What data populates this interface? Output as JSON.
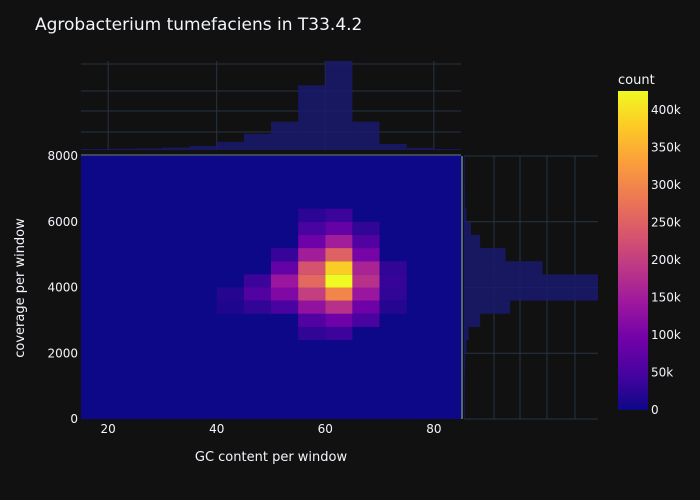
{
  "chart_data": {
    "type": "heatmap",
    "title": "Agrobacterium tumefaciens in T33.4.2",
    "xlabel": "GC content per window",
    "ylabel": "coverage per window",
    "xlim": [
      15,
      85
    ],
    "ylim": [
      0,
      8000
    ],
    "x_ticks": [
      20,
      40,
      60,
      80
    ],
    "y_ticks": [
      0,
      2000,
      4000,
      6000,
      8000
    ],
    "x_tick_labels": [
      "20",
      "40",
      "60",
      "80"
    ],
    "y_tick_labels": [
      "0",
      "2000",
      "4000",
      "6000",
      "8000"
    ],
    "bin_size_x": 5,
    "bin_size_y": 400,
    "colorscale": [
      "#0d0887",
      "#46039f",
      "#7201a8",
      "#9c179e",
      "#bd3786",
      "#d8576b",
      "#ed7953",
      "#fb9f3a",
      "#fdca26",
      "#f0f921"
    ],
    "colorbar": {
      "title": "count",
      "max": 425000,
      "ticks": [
        0,
        50000,
        100000,
        150000,
        200000,
        250000,
        300000,
        350000,
        400000
      ],
      "tick_labels": [
        "0",
        "50k",
        "100k",
        "150k",
        "200k",
        "250k",
        "300k",
        "350k",
        "400k"
      ]
    },
    "grid": true,
    "marginal_x": {
      "type": "histogram",
      "bins": [
        [
          15,
          20,
          0.5
        ],
        [
          20,
          25,
          0.6
        ],
        [
          25,
          30,
          0.8
        ],
        [
          30,
          35,
          1.2
        ],
        [
          35,
          40,
          2
        ],
        [
          40,
          45,
          4
        ],
        [
          45,
          50,
          8
        ],
        [
          50,
          55,
          14
        ],
        [
          55,
          60,
          32
        ],
        [
          60,
          65,
          44
        ],
        [
          65,
          70,
          14
        ],
        [
          70,
          75,
          3
        ],
        [
          75,
          80,
          1
        ],
        [
          80,
          85,
          0.5
        ]
      ]
    },
    "marginal_y": {
      "type": "histogram",
      "bins": [
        [
          0,
          400,
          0.3
        ],
        [
          400,
          800,
          0.3
        ],
        [
          800,
          1200,
          0.3
        ],
        [
          1200,
          1600,
          0.4
        ],
        [
          1600,
          2000,
          0.5
        ],
        [
          2000,
          2400,
          1
        ],
        [
          2400,
          2800,
          2
        ],
        [
          2800,
          3200,
          7
        ],
        [
          3200,
          3600,
          20
        ],
        [
          3600,
          4000,
          58
        ],
        [
          4000,
          4400,
          58
        ],
        [
          4400,
          4800,
          34
        ],
        [
          4800,
          5200,
          18
        ],
        [
          5200,
          5600,
          7
        ],
        [
          5600,
          6000,
          3
        ],
        [
          6000,
          6400,
          1
        ],
        [
          6400,
          6800,
          0.5
        ],
        [
          6800,
          7200,
          0.4
        ],
        [
          7200,
          7600,
          0.3
        ],
        [
          7600,
          8000,
          0.3
        ]
      ]
    },
    "bins": [
      [
        45,
        3600,
        60000
      ],
      [
        45,
        4000,
        40000
      ],
      [
        45,
        3200,
        30000
      ],
      [
        40,
        3600,
        20000
      ],
      [
        40,
        3200,
        15000
      ],
      [
        50,
        3200,
        50000
      ],
      [
        50,
        3600,
        110000
      ],
      [
        50,
        4000,
        140000
      ],
      [
        50,
        4400,
        80000
      ],
      [
        50,
        4800,
        35000
      ],
      [
        55,
        2400,
        30000
      ],
      [
        55,
        2800,
        60000
      ],
      [
        55,
        3200,
        130000
      ],
      [
        55,
        3600,
        200000
      ],
      [
        55,
        4000,
        260000
      ],
      [
        55,
        4400,
        230000
      ],
      [
        55,
        4800,
        150000
      ],
      [
        55,
        5200,
        90000
      ],
      [
        55,
        5600,
        50000
      ],
      [
        55,
        6000,
        25000
      ],
      [
        60,
        2400,
        40000
      ],
      [
        60,
        2800,
        90000
      ],
      [
        60,
        3200,
        180000
      ],
      [
        60,
        3600,
        300000
      ],
      [
        60,
        4000,
        425000
      ],
      [
        60,
        4400,
        380000
      ],
      [
        60,
        4800,
        250000
      ],
      [
        60,
        5200,
        150000
      ],
      [
        60,
        5600,
        80000
      ],
      [
        60,
        6000,
        40000
      ],
      [
        65,
        2800,
        50000
      ],
      [
        65,
        3200,
        90000
      ],
      [
        65,
        3600,
        140000
      ],
      [
        65,
        4000,
        180000
      ],
      [
        65,
        4400,
        160000
      ],
      [
        65,
        4800,
        100000
      ],
      [
        65,
        5200,
        60000
      ],
      [
        65,
        5600,
        30000
      ],
      [
        70,
        3200,
        20000
      ],
      [
        70,
        3600,
        30000
      ],
      [
        70,
        4000,
        35000
      ],
      [
        70,
        4400,
        30000
      ]
    ]
  }
}
